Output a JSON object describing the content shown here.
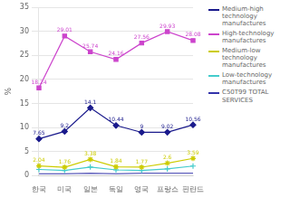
{
  "chart_data": {
    "type": "line",
    "categories": [
      "한국",
      "미국",
      "일본",
      "독일",
      "영국",
      "프랑스",
      "핀란드"
    ],
    "series": [
      {
        "name": "Medium-high\ntechnology\nmanufactures",
        "color": "#1a1a8c",
        "marker": "diamond",
        "data_labels": true,
        "values": [
          7.65,
          9.2,
          14.1,
          10.44,
          9.0,
          9.02,
          10.56
        ]
      },
      {
        "name": "High-technology\nmanufactures",
        "color": "#cc44cc",
        "marker": "square",
        "data_labels": true,
        "values": [
          18.24,
          29.01,
          25.74,
          24.16,
          27.56,
          29.93,
          28.08
        ]
      },
      {
        "name": "Medium-low\ntechnology\nmanufactures",
        "color": "#cccc00",
        "marker": "star",
        "data_labels": true,
        "values": [
          2.04,
          1.76,
          3.38,
          1.84,
          1.77,
          2.6,
          3.59
        ]
      },
      {
        "name": "Low-technology\nmanufactures",
        "color": "#44cccc",
        "marker": "plus",
        "data_labels": false,
        "values": [
          1.3,
          1.1,
          1.8,
          1.2,
          1.1,
          1.4,
          2.0
        ]
      },
      {
        "name": "C50T99 TOTAL\nSERVICES",
        "color": "#3333aa",
        "marker": "none",
        "data_labels": false,
        "values": [
          0.4,
          0.4,
          0.5,
          0.4,
          0.5,
          0.5,
          0.5
        ]
      }
    ],
    "y_label": "%",
    "ylim": [
      0,
      35
    ],
    "yticks": [
      0,
      5,
      10,
      15,
      20,
      25,
      30,
      35
    ],
    "grid": true,
    "legend": "right"
  }
}
